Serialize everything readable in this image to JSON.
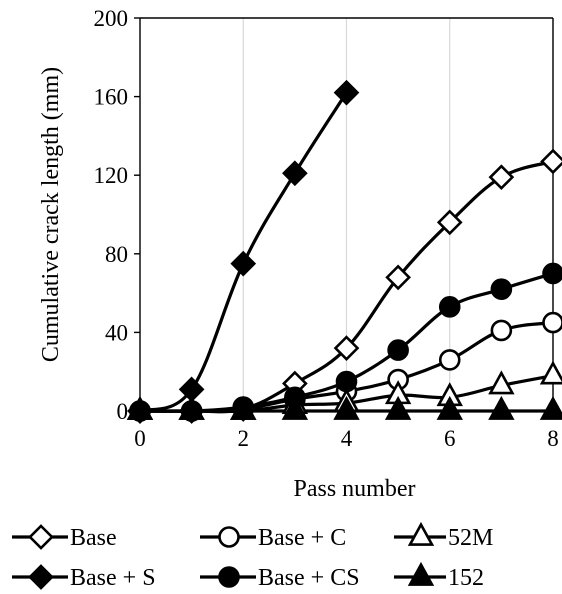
{
  "chart_data": {
    "type": "line",
    "xlabel": "Pass number",
    "ylabel": "Cumulative crack length (mm)",
    "xlim": [
      0,
      8
    ],
    "ylim": [
      0,
      200
    ],
    "xticks": [
      0,
      2,
      4,
      6,
      8
    ],
    "yticks": [
      0,
      40,
      80,
      120,
      160,
      200
    ],
    "grid": "vertical",
    "legend_position": "bottom",
    "series": [
      {
        "name": "Base",
        "marker": "diamond",
        "fill": "open",
        "x": [
          0,
          1,
          2,
          3,
          4,
          5,
          6,
          7,
          8
        ],
        "values": [
          0,
          0,
          1,
          14,
          32,
          68,
          96,
          119,
          127
        ]
      },
      {
        "name": "Base + C",
        "marker": "circle",
        "fill": "open",
        "x": [
          0,
          1,
          2,
          3,
          4,
          5,
          6,
          7,
          8
        ],
        "values": [
          0,
          0,
          1,
          6,
          10,
          16,
          26,
          41,
          45
        ]
      },
      {
        "name": "52M",
        "marker": "triangle",
        "fill": "open",
        "x": [
          0,
          1,
          2,
          3,
          4,
          5,
          6,
          7,
          8
        ],
        "values": [
          0,
          0,
          0,
          3,
          4,
          8,
          7,
          13,
          18
        ]
      },
      {
        "name": "Base + S",
        "marker": "diamond",
        "fill": "solid",
        "x": [
          0,
          1,
          2,
          3,
          4
        ],
        "values": [
          0,
          11,
          75,
          121,
          162
        ]
      },
      {
        "name": "Base + CS",
        "marker": "circle",
        "fill": "solid",
        "x": [
          0,
          1,
          2,
          3,
          4,
          5,
          6,
          7,
          8
        ],
        "values": [
          0,
          0,
          2,
          7,
          15,
          31,
          53,
          62,
          70
        ]
      },
      {
        "name": "152",
        "marker": "triangle",
        "fill": "solid",
        "x": [
          0,
          1,
          2,
          3,
          4,
          5,
          6,
          7,
          8
        ],
        "values": [
          0,
          0,
          0,
          0,
          0,
          0,
          0,
          0,
          0
        ]
      }
    ]
  },
  "colors": {
    "line": "#000000",
    "open_fill": "#ffffff",
    "solid_fill": "#000000",
    "grid": "#d9d9d9"
  }
}
